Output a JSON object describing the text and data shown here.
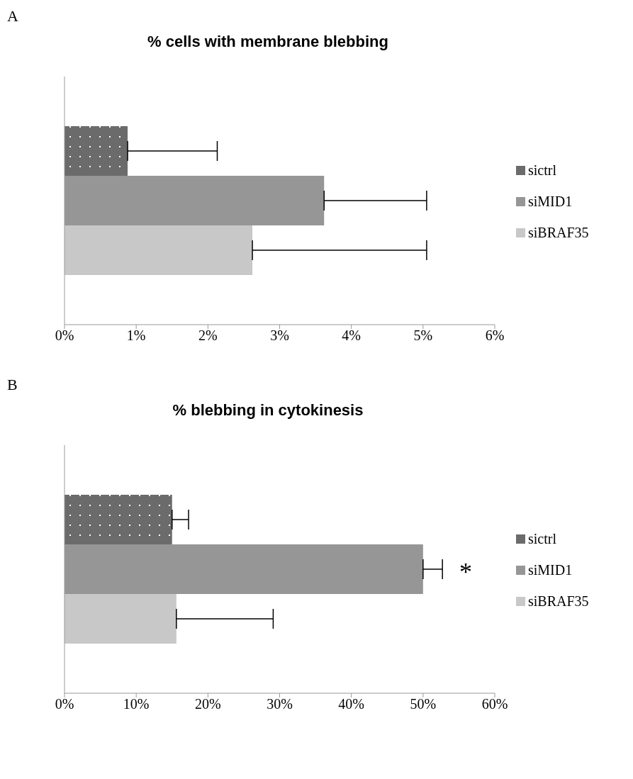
{
  "chart_data": [
    {
      "type": "bar",
      "orientation": "horizontal",
      "title": "% cells with membrane blebbing",
      "annotations": [
        "A"
      ],
      "categories": [
        null
      ],
      "series": [
        {
          "name": "sictrl",
          "color": "#6b6b6b",
          "values": [
            0.88
          ],
          "errors": [
            1.25
          ]
        },
        {
          "name": "siMID1",
          "color": "#969696",
          "values": [
            3.62
          ],
          "errors": [
            1.43
          ]
        },
        {
          "name": "siBRAF35",
          "color": "#c8c8c8",
          "values": [
            2.62
          ],
          "errors": [
            2.43
          ]
        }
      ],
      "xlim": [
        0,
        6
      ],
      "xticks": [
        {
          "value": 0,
          "label": "0%"
        },
        {
          "value": 1,
          "label": "1%"
        },
        {
          "value": 2,
          "label": "2%"
        },
        {
          "value": 3,
          "label": "3%"
        },
        {
          "value": 4,
          "label": "4%"
        },
        {
          "value": 5,
          "label": "5%"
        },
        {
          "value": 6,
          "label": "6%"
        }
      ],
      "grid": false,
      "legend": "right"
    },
    {
      "type": "bar",
      "orientation": "horizontal",
      "title": "% blebbing in cytokinesis",
      "annotations": [
        "B",
        "*"
      ],
      "categories": [
        null
      ],
      "series": [
        {
          "name": "sictrl",
          "color": "#6b6b6b",
          "values": [
            15
          ],
          "errors": [
            2.3
          ]
        },
        {
          "name": "siMID1",
          "color": "#969696",
          "values": [
            50
          ],
          "errors": [
            2.7
          ]
        },
        {
          "name": "siBRAF35",
          "color": "#c8c8c8",
          "values": [
            15.6
          ],
          "errors": [
            13.5
          ]
        }
      ],
      "xlim": [
        0,
        60
      ],
      "xticks": [
        {
          "value": 0,
          "label": "0%"
        },
        {
          "value": 10,
          "label": "10%"
        },
        {
          "value": 20,
          "label": "20%"
        },
        {
          "value": 30,
          "label": "30%"
        },
        {
          "value": 40,
          "label": "40%"
        },
        {
          "value": 50,
          "label": "50%"
        },
        {
          "value": 60,
          "label": "60%"
        }
      ],
      "grid": false,
      "legend": "right"
    }
  ]
}
